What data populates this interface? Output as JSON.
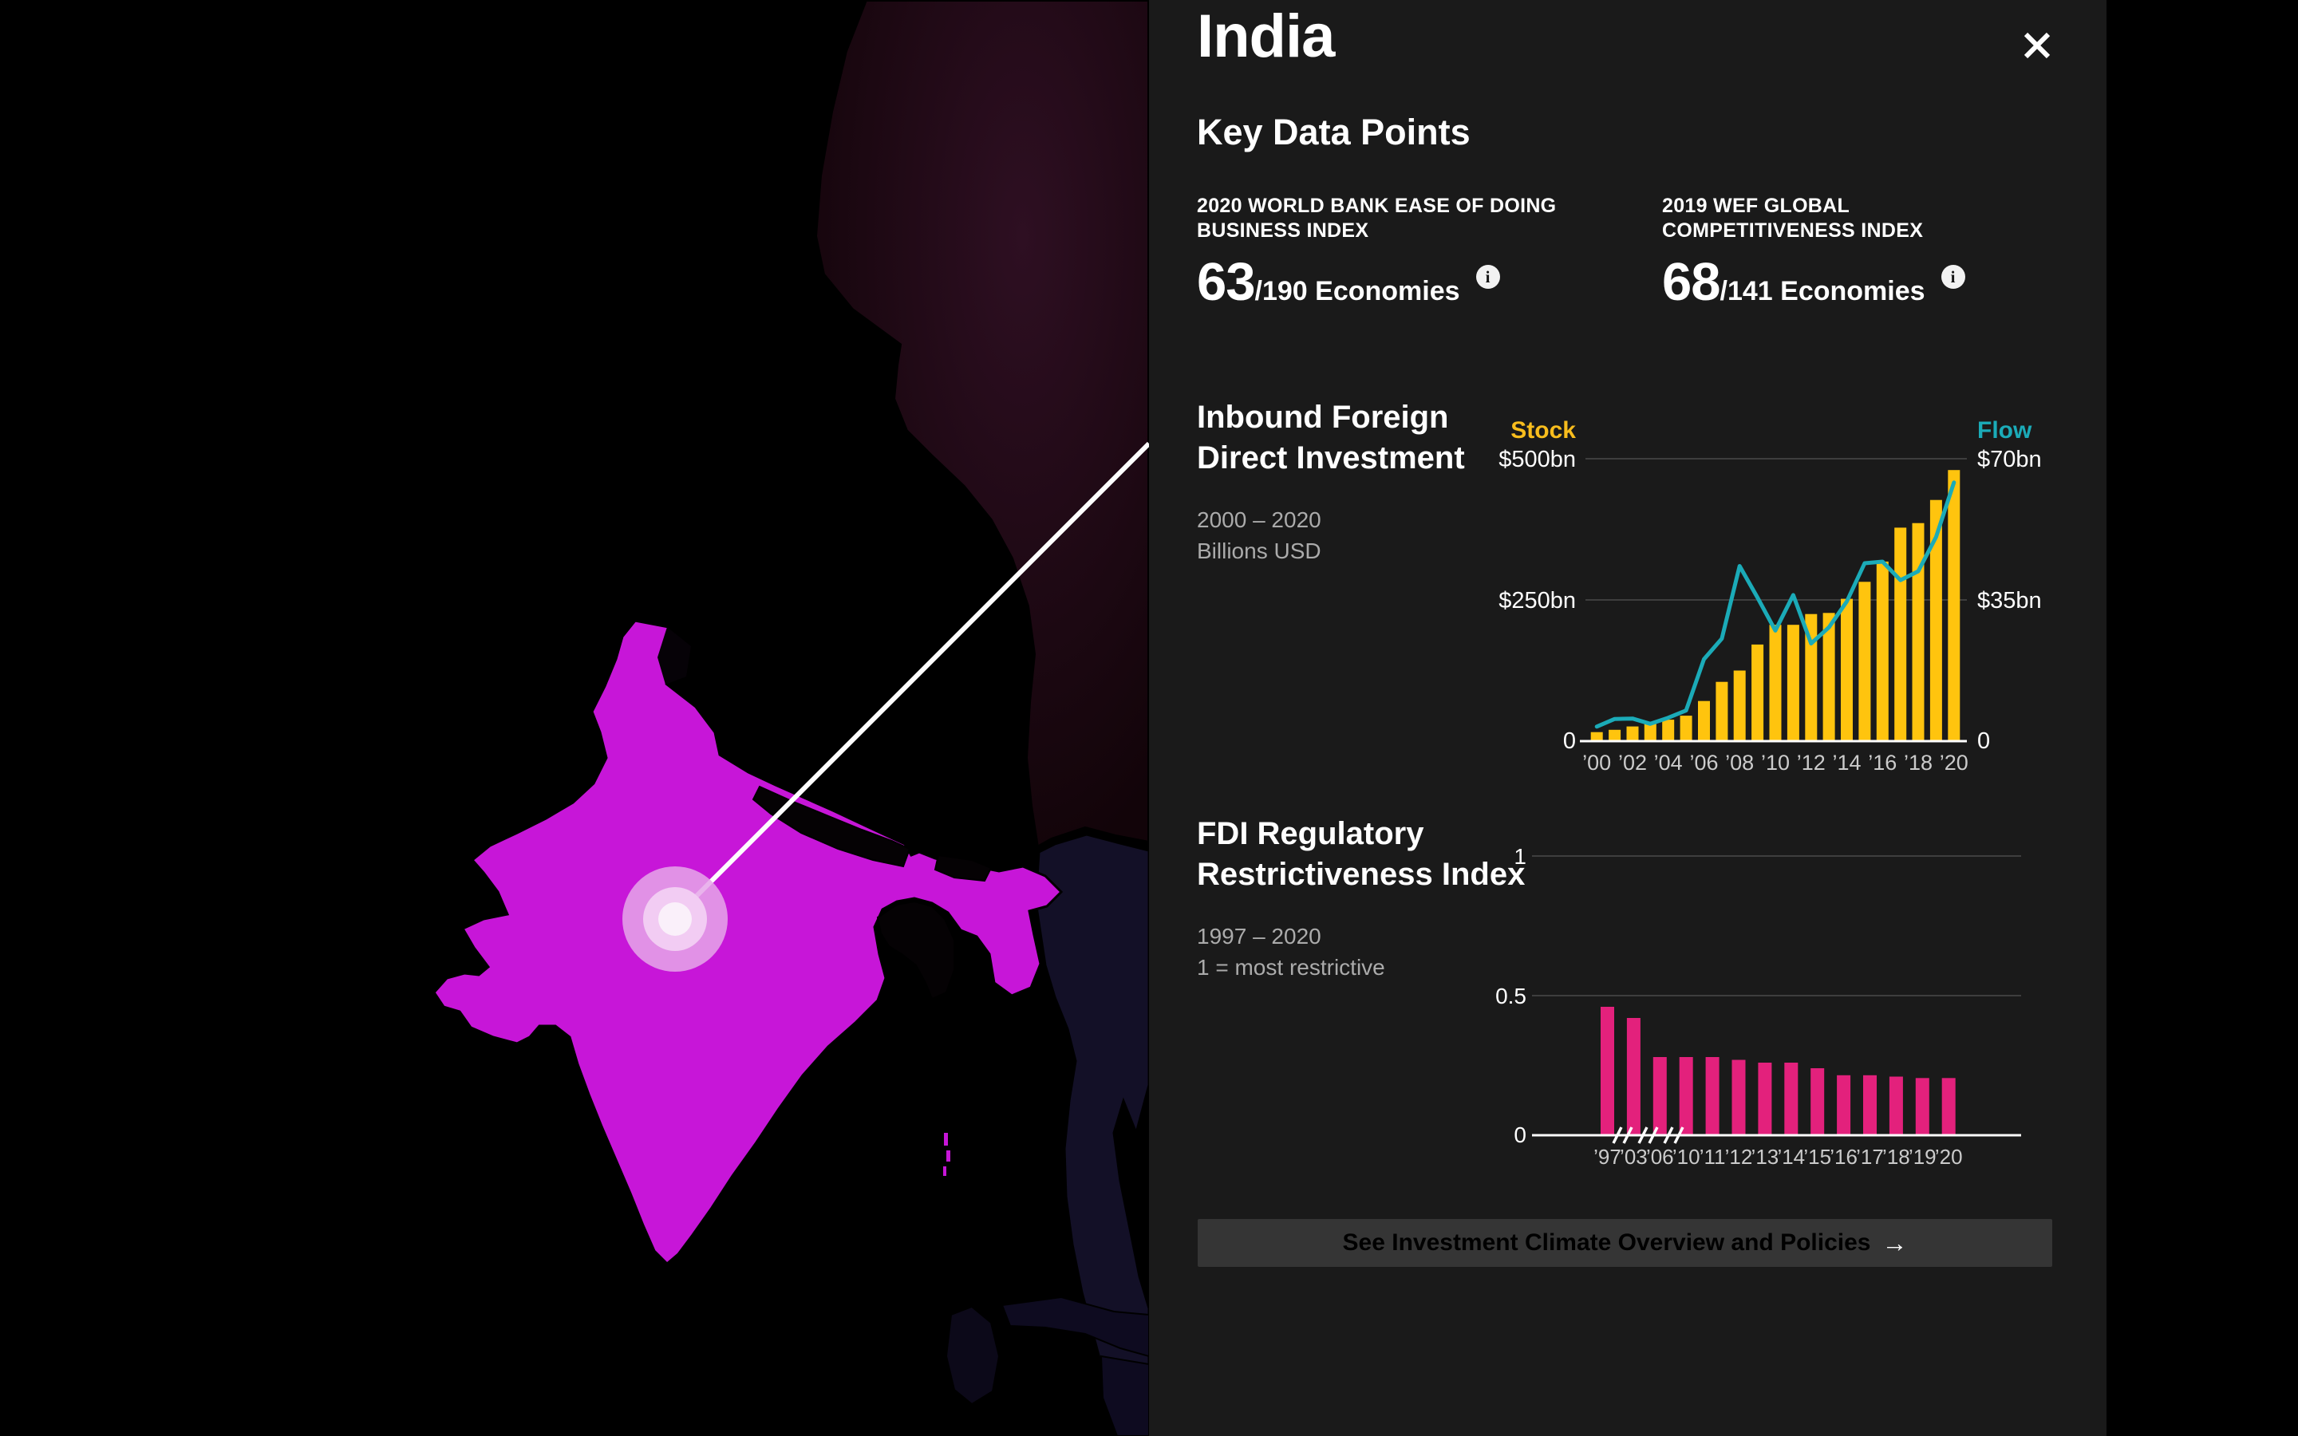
{
  "panel": {
    "title": "India",
    "section_title": "Key Data Points",
    "stats": [
      {
        "label_lines": [
          "2020 WORLD BANK EASE OF DOING",
          "BUSINESS INDEX"
        ],
        "value": "63",
        "denominator": "/190 Economies"
      },
      {
        "label_lines": [
          "2019 WEF GLOBAL",
          "COMPETITIVENESS INDEX"
        ],
        "value": "68",
        "denominator": "/141 Economies"
      }
    ],
    "info_icon_glyph": "i",
    "cta": {
      "label": "See Investment Climate Overview and Policies",
      "arrow": "→"
    }
  },
  "colors": {
    "panel_bg": "#1A1A1A",
    "accent_yellow": "#F8BD1D",
    "bar_yellow": "#FFC40E",
    "teal": "#1BABB8",
    "pink": "#E3217C",
    "grid": "#3E3E3E",
    "axis_text": "#FFFFFF",
    "tick_text": "#CBCBCB",
    "baseline": "#FFFFFF",
    "map": {
      "ocean": "#000000",
      "india": "#C716D8",
      "china": "#23091A",
      "china_glow": "#2E0F22",
      "neighbor_black": "#050204",
      "myanmar": "#131027",
      "se_asia": "#0E0B20",
      "sri_lanka": "#0C0919",
      "marker_outer": "#E5A7E9",
      "marker_mid": "#F2CCF3",
      "marker_inner": "#FAF0FA",
      "callout_line": "#FFFFFF"
    }
  },
  "chart_data": [
    {
      "type": "bar",
      "title": "Inbound Foreign Direct Investment",
      "subtitle_lines": [
        "2000 – 2020",
        "Billions USD"
      ],
      "x": [
        2000,
        2001,
        2002,
        2003,
        2004,
        2005,
        2006,
        2007,
        2008,
        2009,
        2010,
        2011,
        2012,
        2013,
        2014,
        2015,
        2016,
        2017,
        2018,
        2019,
        2020
      ],
      "x_tick_labels": [
        "’00",
        "’02",
        "’04",
        "’06",
        "’08",
        "’10",
        "’12",
        "’14",
        "’16",
        "’18",
        "’20"
      ],
      "left_axis": {
        "label": "Stock",
        "tick_labels": [
          "$500bn",
          "$250bn",
          "0"
        ],
        "max": 500
      },
      "right_axis": {
        "label": "Flow",
        "tick_labels": [
          "$70bn",
          "$35bn",
          "0"
        ],
        "max": 70
      },
      "series": [
        {
          "name": "Stock",
          "type": "bar",
          "axis": "left",
          "color": "#FFC40E",
          "values": [
            16,
            20,
            26,
            31,
            38,
            45,
            71,
            105,
            125,
            171,
            206,
            206,
            225,
            227,
            252,
            282,
            318,
            378,
            386,
            427,
            480
          ]
        },
        {
          "name": "Flow",
          "type": "line",
          "axis": "right",
          "color": "#1BABB8",
          "values": [
            3.6,
            5.5,
            5.6,
            4.3,
            5.8,
            7.6,
            20.3,
            25.4,
            43.4,
            35.6,
            27.4,
            36.2,
            24.2,
            28.2,
            34.6,
            44.1,
            44.5,
            39.9,
            42.1,
            50.6,
            64.1
          ]
        }
      ],
      "grid": true,
      "legend_position": "above-axes"
    },
    {
      "type": "bar",
      "title": "FDI Regulatory Restrictiveness Index",
      "subtitle_lines": [
        "1997 – 2020",
        "1 = most restrictive"
      ],
      "categories": [
        "’97",
        "’03",
        "’06",
        "’10",
        "’11",
        "’12",
        "’13",
        "’14",
        "’15",
        "’16",
        "’17",
        "’18",
        "’19",
        "’20"
      ],
      "values": [
        0.46,
        0.42,
        0.28,
        0.28,
        0.28,
        0.27,
        0.26,
        0.26,
        0.24,
        0.215,
        0.215,
        0.21,
        0.205,
        0.205
      ],
      "ylim": [
        0,
        1
      ],
      "ytick_labels": [
        "1",
        "0.5",
        "0"
      ],
      "color": "#E3217C",
      "axis_break_after_first_three": true,
      "grid": true
    }
  ]
}
